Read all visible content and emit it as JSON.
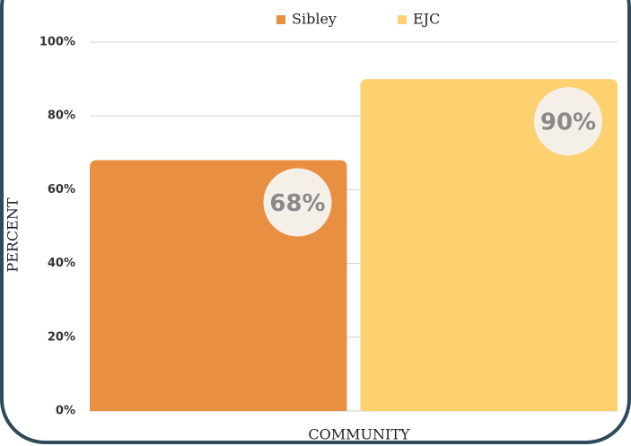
{
  "chart_data": {
    "type": "bar",
    "categories": [
      "COMMUNITY"
    ],
    "series": [
      {
        "name": "Sibley",
        "color": "#e88f42",
        "values": [
          68
        ],
        "value_labels": [
          "68%"
        ]
      },
      {
        "name": "EJC",
        "color": "#fdd070",
        "values": [
          90
        ],
        "value_labels": [
          "90%"
        ]
      }
    ],
    "y_label": "PERCENT",
    "x_label": "COMMUNITY",
    "ylim": [
      0,
      100
    ],
    "yticks": [
      {
        "value": 0,
        "label": "0%"
      },
      {
        "value": 20,
        "label": "20%"
      },
      {
        "value": 40,
        "label": "40%"
      },
      {
        "value": 60,
        "label": "60%"
      },
      {
        "value": 80,
        "label": "80%"
      },
      {
        "value": 100,
        "label": "100%"
      }
    ],
    "grid": true,
    "legend": "top"
  }
}
